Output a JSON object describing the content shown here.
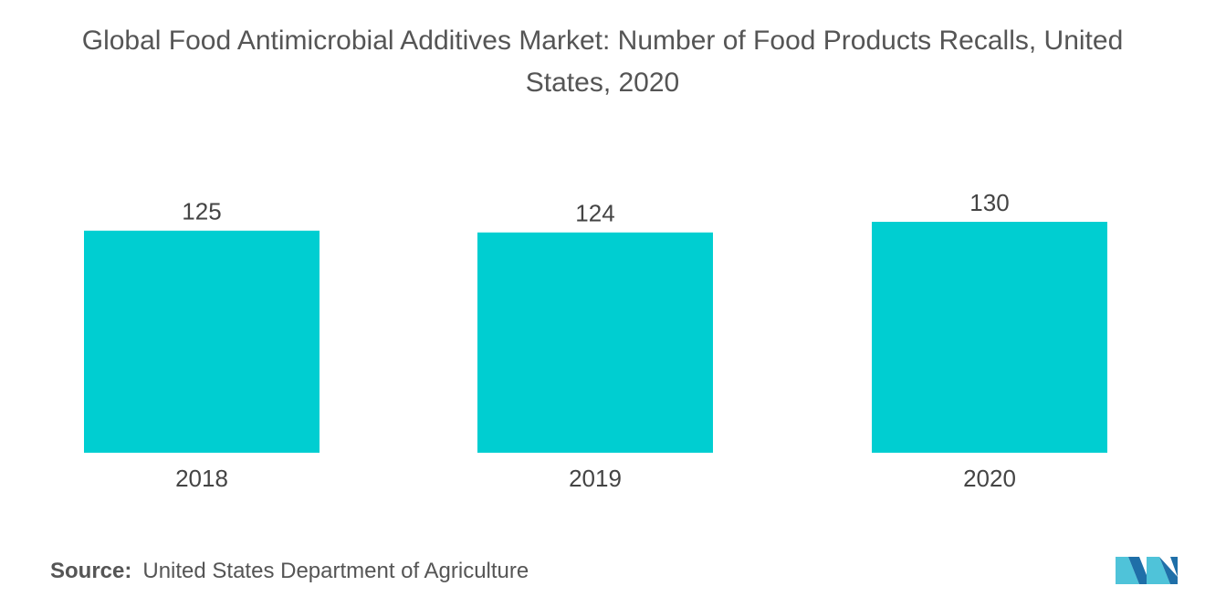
{
  "chart_data": {
    "type": "bar",
    "title": "Global Food Antimicrobial Additives Market: Number of Food Products Recalls, United States, 2020",
    "categories": [
      "2018",
      "2019",
      "2020"
    ],
    "values": [
      125,
      124,
      130
    ],
    "data_labels": [
      "125",
      "124",
      "130"
    ],
    "xlabel": "",
    "ylabel": "",
    "ylim": [
      0,
      130
    ],
    "grid": false,
    "legend": "none",
    "bar_color": "#00CED1"
  },
  "source": {
    "label": "Source:",
    "text": "United States Department of Agriculture"
  },
  "logo": {
    "icon": "mordor-intelligence-logo-icon",
    "colors": [
      "#1F6FA8",
      "#4FC3D9"
    ]
  }
}
